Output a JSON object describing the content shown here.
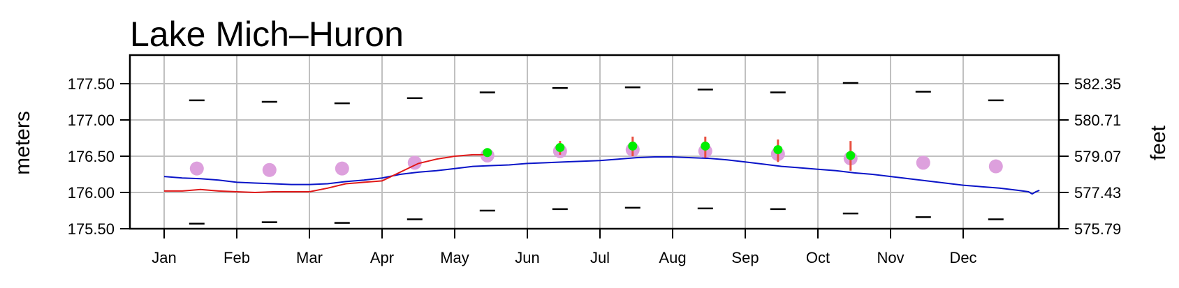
{
  "chart_data": {
    "type": "line",
    "title": "Lake Mich–Huron",
    "ylabel": "meters",
    "y2label": "feet",
    "ylim": [
      175.48,
      177.87
    ],
    "xlim": [
      -0.5,
      12.87
    ],
    "grid": true,
    "x_ticks": [
      {
        "x": 0,
        "label": "Jan"
      },
      {
        "x": 1,
        "label": "Feb"
      },
      {
        "x": 2,
        "label": "Mar"
      },
      {
        "x": 3,
        "label": "Apr"
      },
      {
        "x": 4,
        "label": "May"
      },
      {
        "x": 5,
        "label": "Jun"
      },
      {
        "x": 6,
        "label": "Jul"
      },
      {
        "x": 7,
        "label": "Aug"
      },
      {
        "x": 8,
        "label": "Sep"
      },
      {
        "x": 9,
        "label": "Oct"
      },
      {
        "x": 10,
        "label": "Nov"
      },
      {
        "x": 11,
        "label": "Dec"
      }
    ],
    "y_ticks": [
      {
        "value": 175.5,
        "label": "175.50"
      },
      {
        "value": 176.0,
        "label": "176.00"
      },
      {
        "value": 176.5,
        "label": "176.50"
      },
      {
        "value": 177.0,
        "label": "177.00"
      },
      {
        "value": 177.5,
        "label": "177.50"
      }
    ],
    "y2_ticks": [
      {
        "value": 175.5,
        "label": "575.79"
      },
      {
        "value": 176.0,
        "label": "577.43"
      },
      {
        "value": 176.5,
        "label": "579.07"
      },
      {
        "value": 177.0,
        "label": "580.71"
      },
      {
        "value": 177.5,
        "label": "582.35"
      }
    ],
    "colors": {
      "blue_line": "#0a14c8",
      "red_line": "#e01818",
      "average": "#dda0dd",
      "forecast": "#00ee00",
      "forecast_range": "#e85040",
      "extremes": "#000000",
      "grid": "#c0c0c0"
    },
    "monthly_average": {
      "x": [
        0.45,
        1.45,
        2.45,
        3.45,
        4.45,
        5.45,
        6.45,
        7.45,
        8.45,
        9.45,
        10.45,
        11.45
      ],
      "y": [
        176.33,
        176.31,
        176.33,
        176.41,
        176.51,
        176.57,
        176.59,
        176.57,
        176.53,
        176.47,
        176.41,
        176.36
      ]
    },
    "monthly_max": {
      "x": [
        0.45,
        1.45,
        2.45,
        3.45,
        4.45,
        5.45,
        6.45,
        7.45,
        8.45,
        9.45,
        10.45,
        11.45
      ],
      "y": [
        177.27,
        177.25,
        177.23,
        177.3,
        177.38,
        177.44,
        177.45,
        177.42,
        177.38,
        177.51,
        177.39,
        177.27
      ]
    },
    "monthly_min": {
      "x": [
        0.45,
        1.45,
        2.45,
        3.45,
        4.45,
        5.45,
        6.45,
        7.45,
        8.45,
        9.45,
        10.45,
        11.45
      ],
      "y": [
        175.57,
        175.59,
        175.58,
        175.63,
        175.75,
        175.77,
        175.79,
        175.78,
        175.77,
        175.71,
        175.66,
        175.63
      ]
    },
    "forecast": {
      "x": [
        4.45,
        5.45,
        6.45,
        7.45,
        8.45,
        9.45
      ],
      "y": [
        176.55,
        176.62,
        176.64,
        176.64,
        176.59,
        176.51
      ],
      "low": [
        176.52,
        176.52,
        176.5,
        176.48,
        176.42,
        176.3
      ],
      "high": [
        176.57,
        176.71,
        176.77,
        176.77,
        176.73,
        176.71
      ]
    },
    "series": [
      {
        "color": "blue",
        "x": [
          0,
          0.25,
          0.5,
          0.75,
          1,
          1.25,
          1.5,
          1.75,
          2,
          2.25,
          2.5,
          2.75,
          3,
          3.25,
          3.5,
          3.75,
          4,
          4.25,
          4.5,
          4.75,
          5,
          5.25,
          5.5,
          5.75,
          6,
          6.25,
          6.5,
          6.75,
          7,
          7.25,
          7.5,
          7.75,
          8,
          8.25,
          8.5,
          8.75,
          9,
          9.25,
          9.5,
          9.75,
          10,
          10.25,
          10.5,
          10.75,
          11,
          11.25,
          11.5,
          11.75,
          11.9,
          11.95,
          12.0,
          12.05
        ],
        "y": [
          176.22,
          176.2,
          176.19,
          176.17,
          176.14,
          176.13,
          176.12,
          176.11,
          176.11,
          176.12,
          176.15,
          176.17,
          176.2,
          176.25,
          176.28,
          176.3,
          176.33,
          176.36,
          176.37,
          176.38,
          176.4,
          176.41,
          176.42,
          176.43,
          176.44,
          176.46,
          176.48,
          176.49,
          176.49,
          176.48,
          176.47,
          176.45,
          176.42,
          176.39,
          176.36,
          176.34,
          176.32,
          176.3,
          176.27,
          176.25,
          176.22,
          176.19,
          176.16,
          176.13,
          176.1,
          176.08,
          176.06,
          176.03,
          176.01,
          175.98,
          176.01,
          176.03
        ]
      },
      {
        "color": "red",
        "x": [
          0,
          0.25,
          0.5,
          0.75,
          1,
          1.25,
          1.5,
          1.75,
          2,
          2.25,
          2.5,
          2.75,
          3,
          3.25,
          3.5,
          3.75,
          4,
          4.25,
          4.45
        ],
        "y": [
          176.02,
          176.02,
          176.04,
          176.02,
          176.01,
          176.0,
          176.01,
          176.01,
          176.01,
          176.06,
          176.12,
          176.14,
          176.16,
          176.28,
          176.4,
          176.46,
          176.5,
          176.52,
          176.52
        ]
      }
    ]
  }
}
